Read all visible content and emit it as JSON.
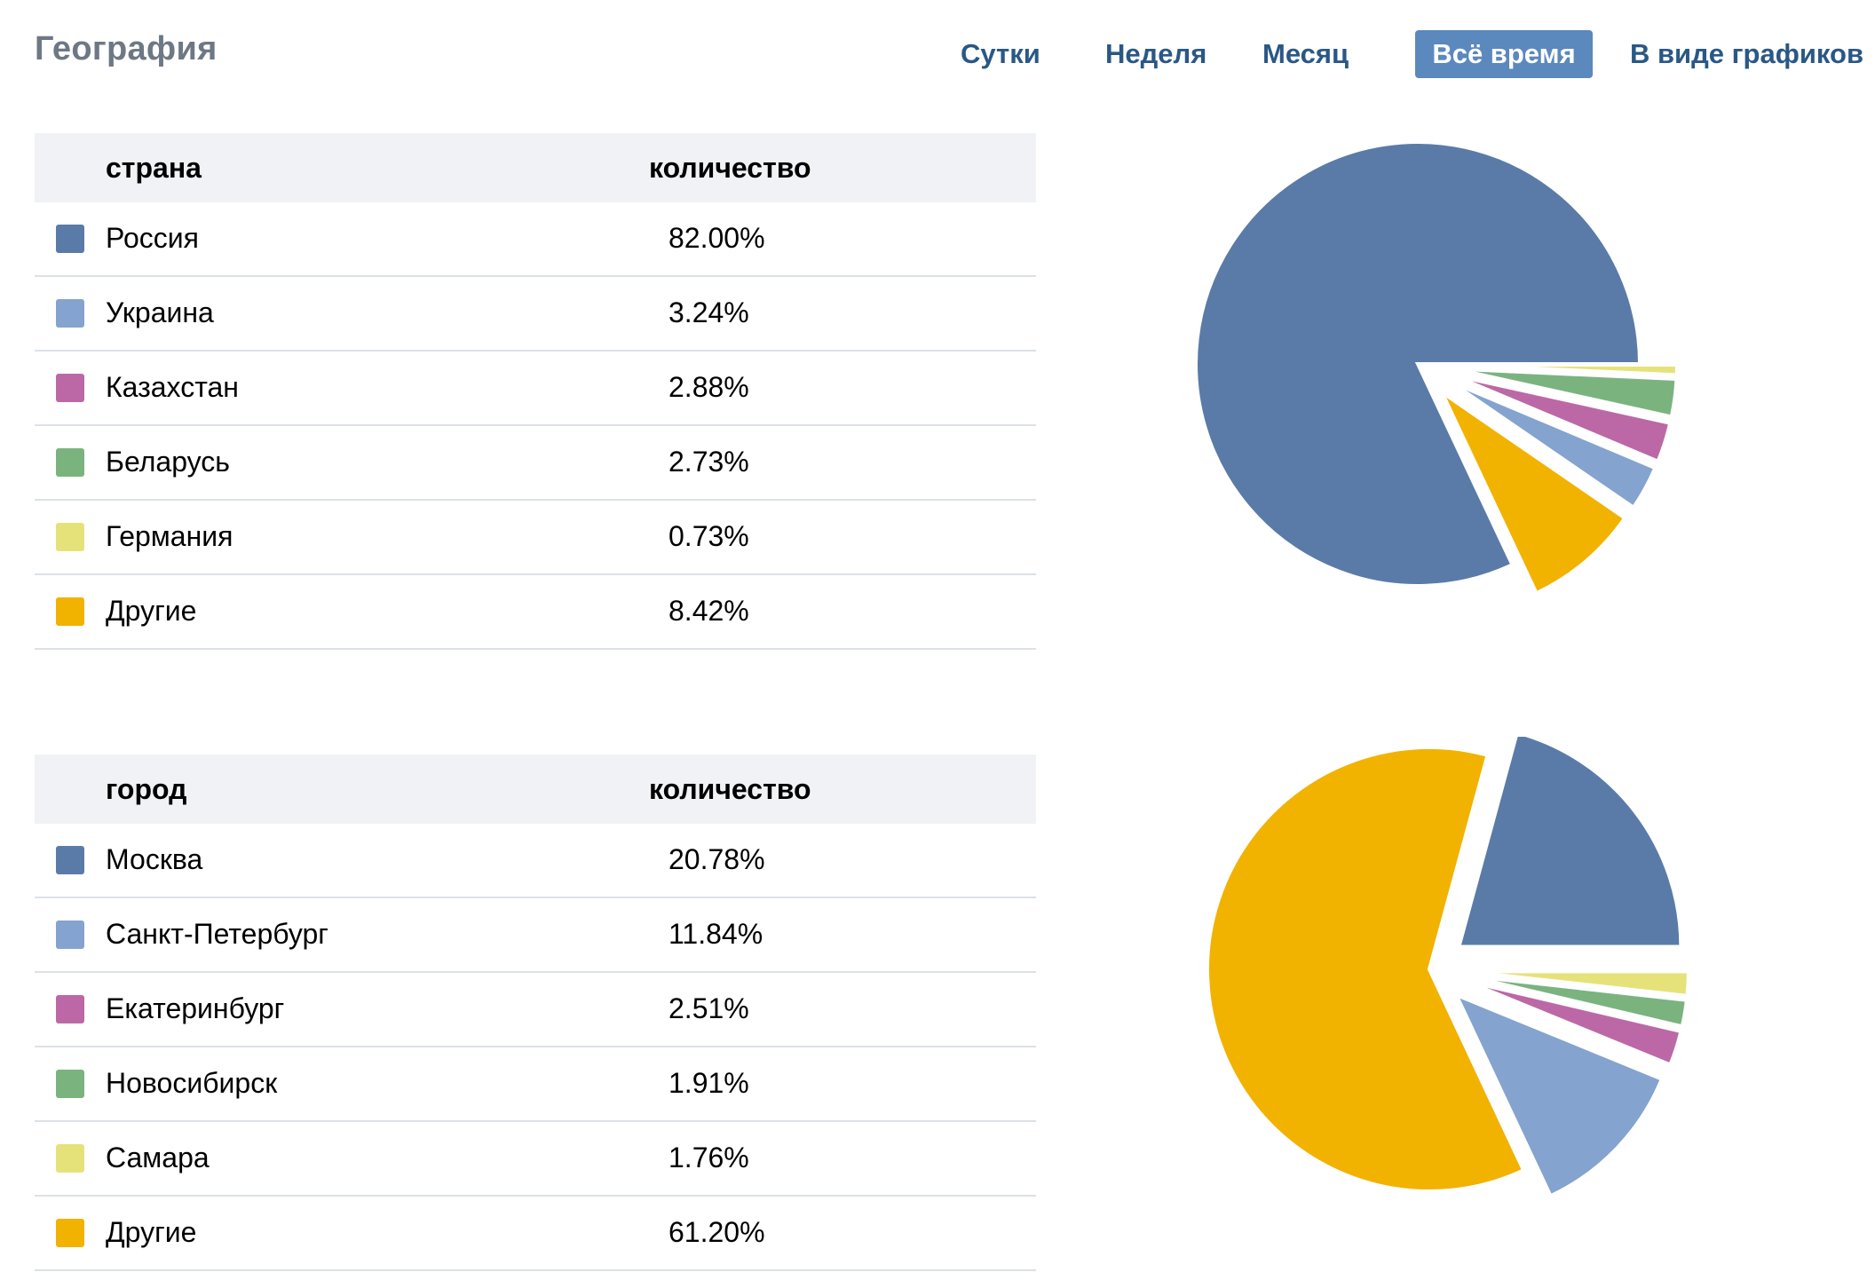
{
  "header": {
    "title": "География",
    "tabs": [
      {
        "label": "Сутки",
        "active": false
      },
      {
        "label": "Неделя",
        "active": false
      },
      {
        "label": "Месяц",
        "active": false
      },
      {
        "label": "Всё время",
        "active": true
      },
      {
        "label": "В виде графиков",
        "active": false
      }
    ]
  },
  "countries": {
    "col_name": "страна",
    "col_count": "количество",
    "rows": [
      {
        "name": "Россия",
        "value": "82.00%",
        "color": "#5a7ba8"
      },
      {
        "name": "Украина",
        "value": "3.24%",
        "color": "#84a3cf"
      },
      {
        "name": "Казахстан",
        "value": "2.88%",
        "color": "#bc68a6"
      },
      {
        "name": "Беларусь",
        "value": "2.73%",
        "color": "#7bb37f"
      },
      {
        "name": "Германия",
        "value": "0.73%",
        "color": "#e6e27a"
      },
      {
        "name": "Другие",
        "value": "8.42%",
        "color": "#f2b200"
      }
    ]
  },
  "cities": {
    "col_name": "город",
    "col_count": "количество",
    "rows": [
      {
        "name": "Москва",
        "value": "20.78%",
        "color": "#5a7ba8"
      },
      {
        "name": "Санкт-Петербург",
        "value": "11.84%",
        "color": "#84a3cf"
      },
      {
        "name": "Екатеринбург",
        "value": "2.51%",
        "color": "#bc68a6"
      },
      {
        "name": "Новосибирск",
        "value": "1.91%",
        "color": "#7bb37f"
      },
      {
        "name": "Самара",
        "value": "1.76%",
        "color": "#e6e27a"
      },
      {
        "name": "Другие",
        "value": "61.20%",
        "color": "#f2b200"
      }
    ]
  },
  "chart_data": [
    {
      "type": "pie",
      "categories": [
        "Россия",
        "Украина",
        "Казахстан",
        "Беларусь",
        "Германия",
        "Другие"
      ],
      "values": [
        82.0,
        3.24,
        2.88,
        2.73,
        0.73,
        8.42
      ],
      "colors": [
        "#5a7ba8",
        "#84a3cf",
        "#bc68a6",
        "#7bb37f",
        "#e6e27a",
        "#f2b200"
      ],
      "title": ""
    },
    {
      "type": "pie",
      "categories": [
        "Москва",
        "Санкт-Петербург",
        "Екатеринбург",
        "Новосибирск",
        "Самара",
        "Другие"
      ],
      "values": [
        20.78,
        11.84,
        2.51,
        1.91,
        1.76,
        61.2
      ],
      "colors": [
        "#5a7ba8",
        "#84a3cf",
        "#bc68a6",
        "#7bb37f",
        "#e6e27a",
        "#f2b200"
      ],
      "title": ""
    }
  ]
}
